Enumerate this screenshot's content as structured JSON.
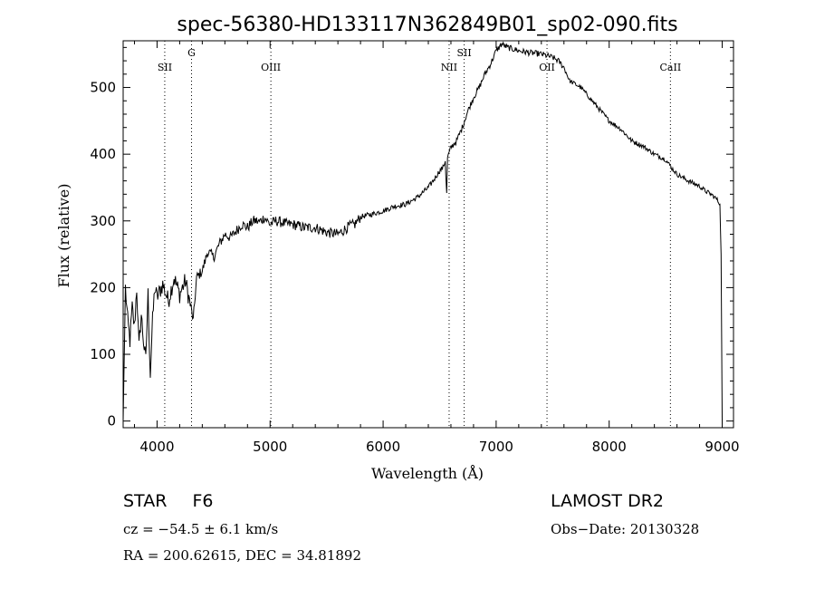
{
  "chart_data": {
    "type": "line",
    "title": "spec-56380-HD133117N362849B01_sp02-090.fits",
    "xlabel": "Wavelength (Å)",
    "ylabel": "Flux (relative)",
    "xlim": [
      3700,
      9100
    ],
    "ylim": [
      -10,
      570
    ],
    "xticks": [
      4000,
      5000,
      6000,
      7000,
      8000,
      9000
    ],
    "yticks": [
      0,
      100,
      200,
      300,
      400,
      500
    ],
    "grid": false,
    "series": [
      {
        "x": [
          3700,
          3720,
          3740,
          3760,
          3780,
          3800,
          3820,
          3840,
          3860,
          3880,
          3900,
          3920,
          3940,
          3960,
          3980,
          4000,
          4050,
          4100,
          4150,
          4200,
          4250,
          4300,
          4320,
          4350,
          4400,
          4450,
          4500,
          4550,
          4600,
          4650,
          4700,
          4750,
          4800,
          4850,
          4880,
          4900,
          4950,
          5000,
          5050,
          5100,
          5150,
          5200,
          5300,
          5400,
          5500,
          5600,
          5700,
          5750,
          5800,
          5900,
          6000,
          6100,
          6200,
          6300,
          6400,
          6450,
          6500,
          6530,
          6550,
          6560,
          6563,
          6570,
          6600,
          6650,
          6700,
          6750,
          6800,
          6850,
          6900,
          6950,
          7000,
          7050,
          7100,
          7200,
          7300,
          7400,
          7500,
          7550,
          7600,
          7650,
          7700,
          7750,
          7800,
          7900,
          8000,
          8100,
          8200,
          8300,
          8400,
          8500,
          8550,
          8600,
          8700,
          8800,
          8850,
          8900,
          8950,
          8980,
          8990,
          9000
        ],
        "y": [
          0,
          200,
          150,
          120,
          170,
          140,
          200,
          110,
          160,
          120,
          90,
          190,
          70,
          150,
          200,
          185,
          205,
          180,
          215,
          190,
          210,
          170,
          150,
          215,
          225,
          255,
          245,
          265,
          280,
          275,
          285,
          295,
          290,
          300,
          300,
          298,
          305,
          295,
          300,
          298,
          295,
          295,
          290,
          290,
          283,
          280,
          292,
          295,
          306,
          310,
          315,
          322,
          325,
          335,
          350,
          362,
          375,
          380,
          390,
          350,
          340,
          395,
          410,
          420,
          440,
          465,
          485,
          500,
          520,
          535,
          555,
          565,
          560,
          555,
          552,
          550,
          545,
          540,
          530,
          510,
          505,
          500,
          490,
          470,
          450,
          438,
          420,
          412,
          400,
          392,
          380,
          370,
          360,
          352,
          345,
          340,
          333,
          325,
          250,
          0
        ]
      }
    ],
    "lines": [
      {
        "label": "SII",
        "x": 4068
      },
      {
        "label": "G",
        "x": 4305
      },
      {
        "label": "OIII",
        "x": 5007
      },
      {
        "label": "NII",
        "x": 6584
      },
      {
        "label": "SII",
        "x": 6717
      },
      {
        "label": "OII",
        "x": 7450
      },
      {
        "label": "CaII",
        "x": 8542
      }
    ]
  },
  "info": {
    "object": "STAR",
    "subclass": "F6",
    "survey": "LAMOST DR2",
    "cz": "cz = −54.5 ± 6.1 km/s",
    "obs_date": "Obs−Date: 20130328",
    "coords": "RA = 200.62615, DEC =  34.81892"
  }
}
